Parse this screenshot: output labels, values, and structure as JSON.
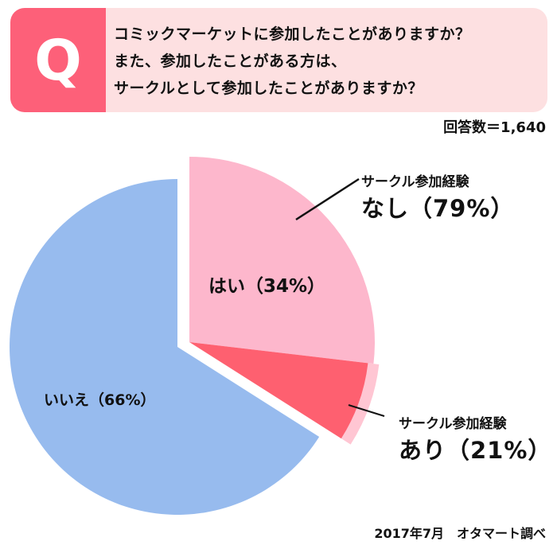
{
  "question": {
    "marker": "Q",
    "lines": [
      "コミックマーケットに参加したことがありますか？",
      "また、参加したことがある方は、",
      "サークルとして参加したことがありますか？"
    ]
  },
  "response_count": "回答数＝1,640",
  "labels": {
    "yes": "はい（34%）",
    "no": "いいえ（66%）",
    "circle_none_sub": "サークル参加経験",
    "circle_none_main": "なし（79%）",
    "circle_yes_sub": "サークル参加経験",
    "circle_yes_main": "あり（21%）"
  },
  "source": "2017年7月　オタマート調べ",
  "colors": {
    "q_marker": "#fd6079",
    "q_background": "#fde0e1",
    "yes": "#fdb7cc",
    "no": "#97bbee",
    "circle_yes": "#fe6070",
    "circle_yes_band": "#ffc6d3"
  },
  "chart_data": {
    "type": "pie",
    "title": "コミックマーケットに参加したことがありますか？ また、参加したことがある方は、サークルとして参加したことがありますか？",
    "n": 1640,
    "categories": [
      "はい",
      "いいえ"
    ],
    "values": [
      34,
      66
    ],
    "sub_breakdown": {
      "parent": "はい",
      "categories": [
        "サークル参加経験なし",
        "サークル参加経験あり"
      ],
      "values": [
        79,
        21
      ]
    },
    "exploded": "はい",
    "source": "2017年7月 オタマート調べ"
  }
}
